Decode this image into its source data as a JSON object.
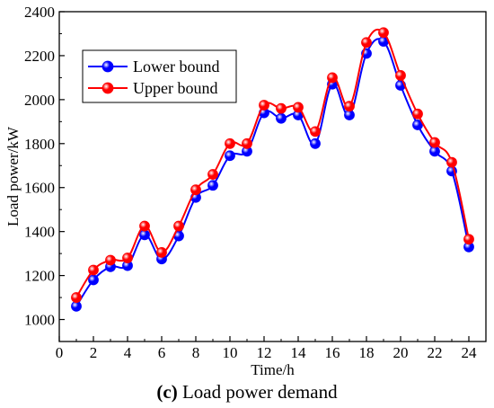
{
  "chart_data": {
    "type": "line",
    "xlabel": "Time/h",
    "ylabel": "Load power/kW",
    "xlim": [
      0,
      25
    ],
    "ylim": [
      900,
      2400
    ],
    "x_ticks": [
      0,
      2,
      4,
      6,
      8,
      10,
      12,
      14,
      16,
      18,
      20,
      22,
      24
    ],
    "y_ticks": [
      1000,
      1200,
      1400,
      1600,
      1800,
      2000,
      2200,
      2400
    ],
    "legend_position": "top-left",
    "grid": false,
    "x": [
      1,
      2,
      3,
      4,
      5,
      6,
      7,
      8,
      9,
      10,
      11,
      12,
      13,
      14,
      15,
      16,
      17,
      18,
      19,
      20,
      21,
      22,
      23,
      24
    ],
    "series": [
      {
        "name": "Lower bound",
        "color": "#0000ff",
        "values": [
          1060,
          1180,
          1240,
          1245,
          1385,
          1275,
          1380,
          1555,
          1610,
          1745,
          1765,
          1940,
          1915,
          1930,
          1800,
          2070,
          1930,
          2210,
          2265,
          2065,
          1885,
          1765,
          1675,
          1330
        ]
      },
      {
        "name": "Upper bound",
        "color": "#ff0000",
        "values": [
          1100,
          1225,
          1270,
          1280,
          1425,
          1305,
          1425,
          1590,
          1660,
          1800,
          1800,
          1975,
          1960,
          1965,
          1855,
          2100,
          1970,
          2260,
          2305,
          2110,
          1935,
          1805,
          1715,
          1365
        ]
      }
    ]
  },
  "caption": {
    "label": "(c)",
    "text": " Load power demand"
  }
}
